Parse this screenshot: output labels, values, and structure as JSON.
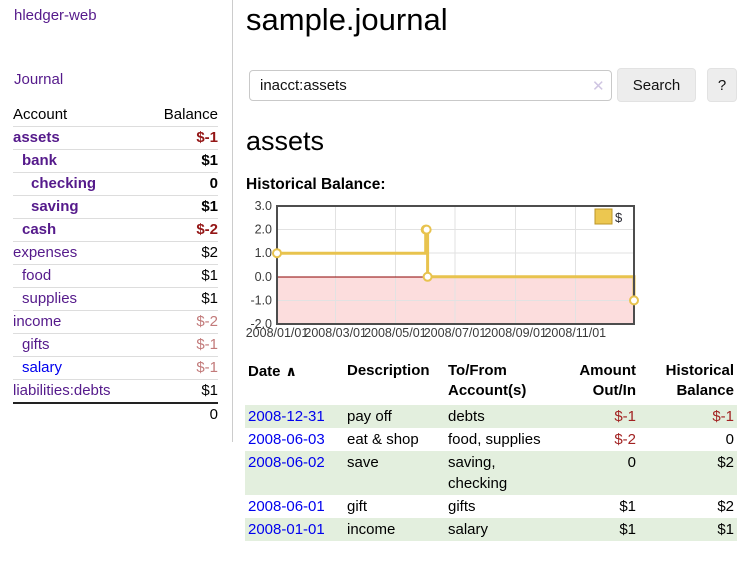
{
  "app": {
    "brand": "hledger-web"
  },
  "sidebar": {
    "nav": {
      "journal": "Journal"
    },
    "headers": {
      "account": "Account",
      "balance": "Balance"
    },
    "accounts": [
      {
        "label": "assets",
        "indent": 1,
        "bold": true,
        "balance": "$-1",
        "tone": "neg-strong",
        "link": "purple"
      },
      {
        "label": "bank",
        "indent": 2,
        "bold": true,
        "balance": "$1",
        "tone": "",
        "link": "purple"
      },
      {
        "label": "checking",
        "indent": 3,
        "bold": true,
        "balance": "0",
        "tone": "",
        "link": "purple"
      },
      {
        "label": "saving",
        "indent": 3,
        "bold": true,
        "balance": "$1",
        "tone": "",
        "link": "purple"
      },
      {
        "label": "cash",
        "indent": 2,
        "bold": true,
        "balance": "$-2",
        "tone": "neg-strong",
        "link": "purple"
      },
      {
        "label": "expenses",
        "indent": 1,
        "bold": false,
        "balance": "$2",
        "tone": "",
        "link": "purple"
      },
      {
        "label": "food",
        "indent": 2,
        "bold": false,
        "balance": "$1",
        "tone": "",
        "link": "purple"
      },
      {
        "label": "supplies",
        "indent": 2,
        "bold": false,
        "balance": "$1",
        "tone": "",
        "link": "purple"
      },
      {
        "label": "income",
        "indent": 1,
        "bold": false,
        "balance": "$-2",
        "tone": "neg-soft",
        "link": "purple"
      },
      {
        "label": "gifts",
        "indent": 2,
        "bold": false,
        "balance": "$-1",
        "tone": "neg-soft",
        "link": "purple"
      },
      {
        "label": "salary",
        "indent": 2,
        "bold": false,
        "balance": "$-1",
        "tone": "neg-soft",
        "link": "blue"
      },
      {
        "label": "liabilities:debts",
        "indent": 1,
        "bold": false,
        "balance": "$1",
        "tone": "",
        "link": "purple"
      }
    ],
    "total": "0"
  },
  "header": {
    "title": "sample.journal"
  },
  "search": {
    "value": "inacct:assets",
    "clear_icon": "✕",
    "button_label": "Search",
    "help_label": "?"
  },
  "account_page": {
    "heading": "assets",
    "chart_title": "Historical Balance:"
  },
  "chart_data": {
    "type": "line",
    "step": true,
    "title": "Historical Balance",
    "series": [
      {
        "name": "$",
        "points": [
          [
            "2008-01-01",
            1
          ],
          [
            "2008-06-01",
            2
          ],
          [
            "2008-06-02",
            2
          ],
          [
            "2008-06-03",
            0
          ],
          [
            "2008-12-31",
            -1
          ]
        ]
      }
    ],
    "x_range": [
      "2008-01-01",
      "2008-12-31"
    ],
    "x_ticks": [
      "2008/01/01",
      "2008/03/01",
      "2008/05/01",
      "2008/07/01",
      "2008/09/01",
      "2008/11/01"
    ],
    "y_ticks": [
      3.0,
      2.0,
      1.0,
      0.0,
      -1.0,
      -2.0
    ],
    "ylim": [
      -2,
      3
    ],
    "legend": {
      "label": "$",
      "position": "top-right"
    },
    "grid": true,
    "colors": {
      "line": "#e8c34e",
      "marker_fill": "#ffffff",
      "negative_fill": "#fcdddd",
      "zero_line": "#8b0000",
      "grid": "#e2e2e2",
      "border": "#4d4d4d",
      "legend_fill": "#ecc750",
      "legend_border": "#bb9527"
    }
  },
  "register": {
    "headers": {
      "date": "Date",
      "sort_icon": "∧",
      "description": "Description",
      "accounts": "To/From Account(s)",
      "amount": "Amount Out/In",
      "balance": "Historical Balance"
    },
    "rows": [
      {
        "date": "2008-12-31",
        "description": "pay off",
        "accounts": "debts",
        "amount": "$-1",
        "amount_tone": "neg",
        "balance": "$-1",
        "balance_tone": "neg"
      },
      {
        "date": "2008-06-03",
        "description": "eat & shop",
        "accounts": "food, supplies",
        "amount": "$-2",
        "amount_tone": "neg",
        "balance": "0",
        "balance_tone": ""
      },
      {
        "date": "2008-06-02",
        "description": "save",
        "accounts": "saving, checking",
        "amount": "0",
        "amount_tone": "",
        "balance": "$2",
        "balance_tone": ""
      },
      {
        "date": "2008-06-01",
        "description": "gift",
        "accounts": "gifts",
        "amount": "$1",
        "amount_tone": "",
        "balance": "$2",
        "balance_tone": ""
      },
      {
        "date": "2008-01-01",
        "description": "income",
        "accounts": "salary",
        "amount": "$1",
        "amount_tone": "",
        "balance": "$1",
        "balance_tone": ""
      }
    ]
  },
  "colors": {
    "link_purple": "#551a8b",
    "link_blue": "#0000ee",
    "negative_strong": "#941616",
    "negative_soft": "#c27a7a",
    "negative_table": "#a22222",
    "row_green": "#e3efde"
  }
}
